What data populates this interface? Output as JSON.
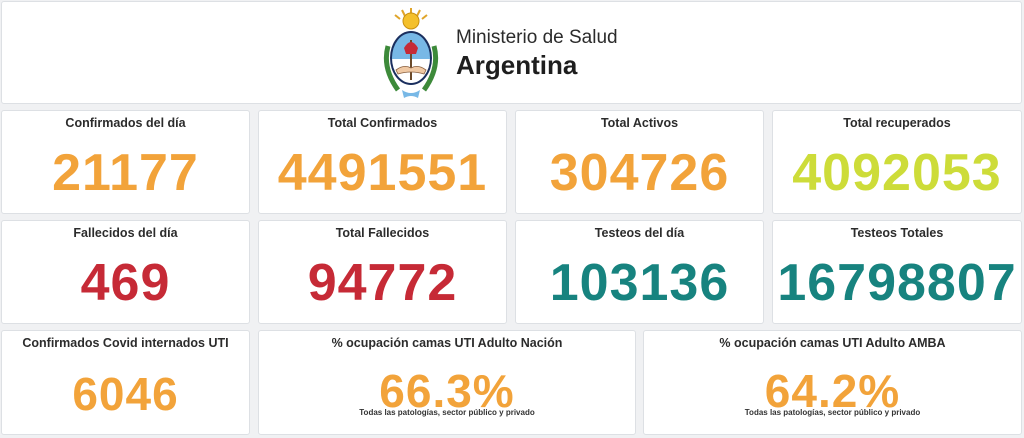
{
  "header": {
    "line1": "Ministerio de Salud",
    "line2": "Argentina",
    "emblem_icon": "argentina-coat-of-arms-icon"
  },
  "colors": {
    "orange": "#f2a33a",
    "yellow_green": "#cddc39",
    "red": "#c62a36",
    "teal": "#17837f"
  },
  "stats": {
    "confirmados_dia": {
      "label": "Confirmados del día",
      "value": "21177"
    },
    "total_confirmados": {
      "label": "Total Confirmados",
      "value": "4491551"
    },
    "total_activos": {
      "label": "Total Activos",
      "value": "304726"
    },
    "total_recuperados": {
      "label": "Total recuperados",
      "value": "4092053"
    },
    "fallecidos_dia": {
      "label": "Fallecidos del día",
      "value": "469"
    },
    "total_fallecidos": {
      "label": "Total Fallecidos",
      "value": "94772"
    },
    "testeos_dia": {
      "label": "Testeos del día",
      "value": "103136"
    },
    "testeos_totales": {
      "label": "Testeos Totales",
      "value": "16798807"
    },
    "internados_uti": {
      "label": "Confirmados Covid internados UTI",
      "value": "6046"
    },
    "ocupacion_nacion": {
      "label": "% ocupación camas UTI Adulto Nación",
      "value": "66.3%",
      "note": "Todas las patologías, sector público y privado"
    },
    "ocupacion_amba": {
      "label": "% ocupación camas UTI Adulto AMBA",
      "value": "64.2%",
      "note": "Todas las patologías, sector público y privado"
    }
  }
}
